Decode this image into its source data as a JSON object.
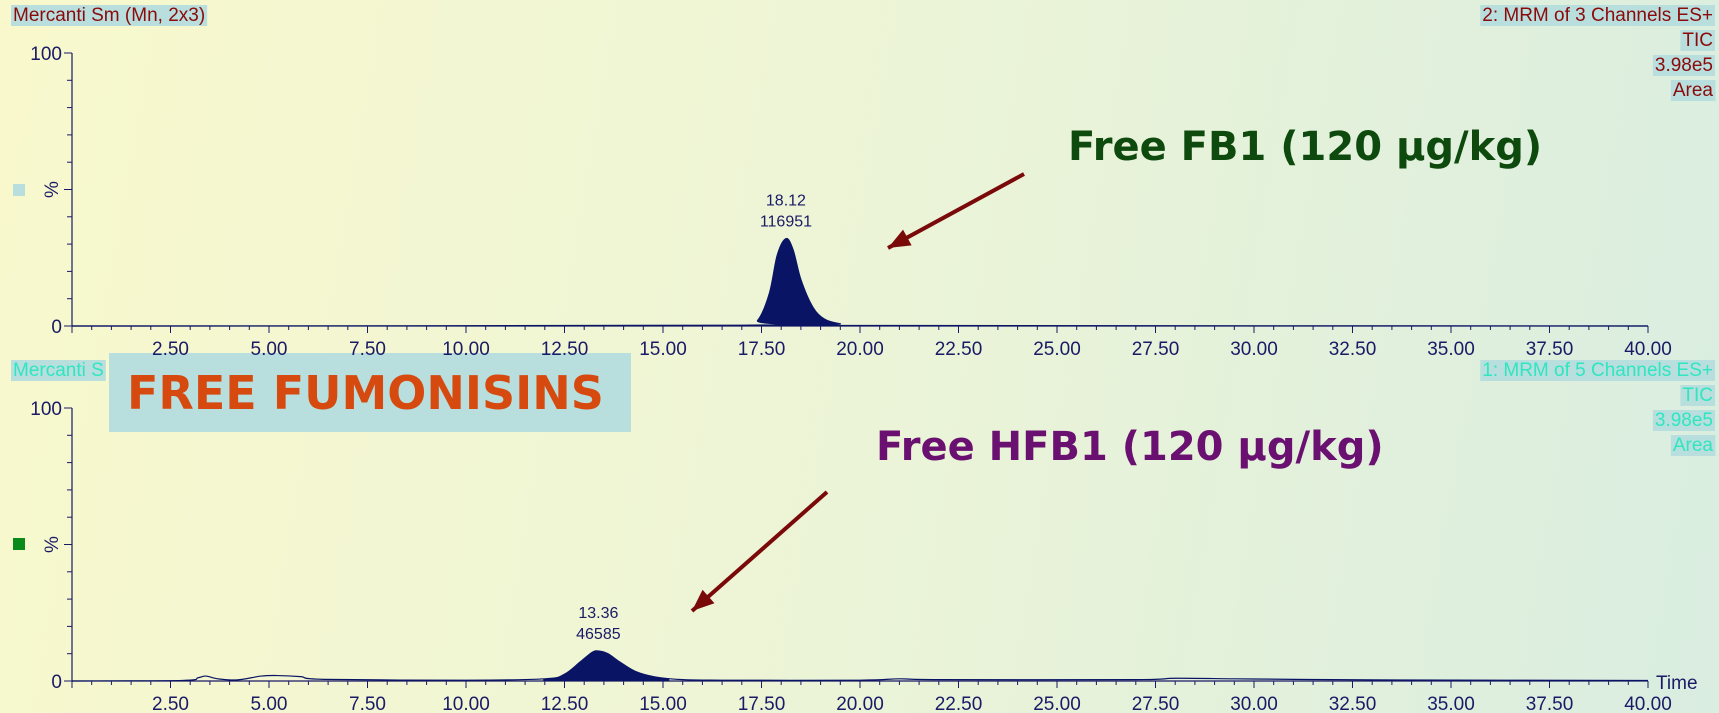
{
  "colors": {
    "trace": "#0a1464",
    "axis": "#1a1a66",
    "header_top": "#8b0a0a",
    "header_bottom": "#2fe6c0",
    "header_bg": "#b8dede",
    "fb1_label": "#0e4a0e",
    "hfb1_label": "#6a1070",
    "banner_text": "#d64a10",
    "banner_bg": "#b8dede",
    "arrow": "#7a0a0a",
    "marker_top": "#b8dede",
    "marker_bottom": "#0a8a1a"
  },
  "chart_data": [
    {
      "type": "line",
      "header_left": "Mercanti Sm (Mn, 2x3)",
      "header_right": [
        "2: MRM of 3 Channels ES+",
        "TIC",
        "3.98e5",
        "Area"
      ],
      "ylabel": "%",
      "y_ticks": [
        "100",
        "0"
      ],
      "ylim": [
        0,
        100
      ],
      "xlim": [
        0,
        40
      ],
      "x_tick_labels": [
        "2.50",
        "5.00",
        "7.50",
        "10.00",
        "12.50",
        "15.00",
        "17.50",
        "20.00",
        "22.50",
        "25.00",
        "27.50",
        "30.00",
        "32.50",
        "35.00",
        "37.50",
        "40.00"
      ],
      "peak": {
        "rt": 18.12,
        "area": 116951,
        "rt_label": "18.12",
        "area_label": "116951",
        "height_pct": 32
      },
      "annotation": "Free FB1 (120 µg/kg)",
      "series": [
        {
          "x": [
            0,
            17.0,
            17.4,
            17.7,
            17.9,
            18.12,
            18.3,
            18.5,
            18.8,
            19.1,
            19.5,
            20.0,
            40
          ],
          "y": [
            0,
            0.3,
            2,
            12,
            26,
            32,
            28,
            17,
            7,
            2.5,
            0.8,
            0.2,
            0
          ]
        }
      ]
    },
    {
      "type": "line",
      "header_left": "Mercanti S",
      "header_right": [
        "1: MRM of 5 Channels ES+",
        "TIC",
        "3.98e5",
        "Area"
      ],
      "ylabel": "%",
      "y_ticks": [
        "100",
        "0"
      ],
      "ylim": [
        0,
        100
      ],
      "xlim": [
        0,
        40
      ],
      "x_tick_labels": [
        "2.50",
        "5.00",
        "7.50",
        "10.00",
        "12.50",
        "15.00",
        "17.50",
        "20.00",
        "22.50",
        "25.00",
        "27.50",
        "30.00",
        "32.50",
        "35.00",
        "37.50",
        "40.00"
      ],
      "axis_label_right": "Time",
      "peak": {
        "rt": 13.36,
        "area": 46585,
        "rt_label": "13.36",
        "area_label": "46585",
        "height_pct": 11
      },
      "annotation": "Free HFB1 (120 µg/kg)",
      "series": [
        {
          "x": [
            0,
            2.8,
            3.2,
            3.4,
            3.7,
            4.2,
            4.8,
            5.2,
            5.8,
            6.4,
            10.0,
            12.0,
            12.5,
            12.9,
            13.2,
            13.36,
            13.6,
            13.9,
            14.3,
            14.8,
            15.5,
            16.5,
            20.0,
            21.0,
            22.0,
            27.0,
            28.0,
            29.5,
            31.0,
            33.0,
            40
          ],
          "y": [
            0,
            0.2,
            1.2,
            1.8,
            0.8,
            0.4,
            1.8,
            2.0,
            1.6,
            0.6,
            0.3,
            0.8,
            2.5,
            7,
            10.5,
            11,
            10,
            7,
            3.5,
            1.5,
            0.5,
            0.3,
            0.3,
            0.8,
            0.5,
            0.5,
            1.0,
            0.8,
            0.6,
            0.4,
            0.2
          ]
        }
      ]
    }
  ],
  "banner": {
    "text": "FREE FUMONISINS"
  }
}
